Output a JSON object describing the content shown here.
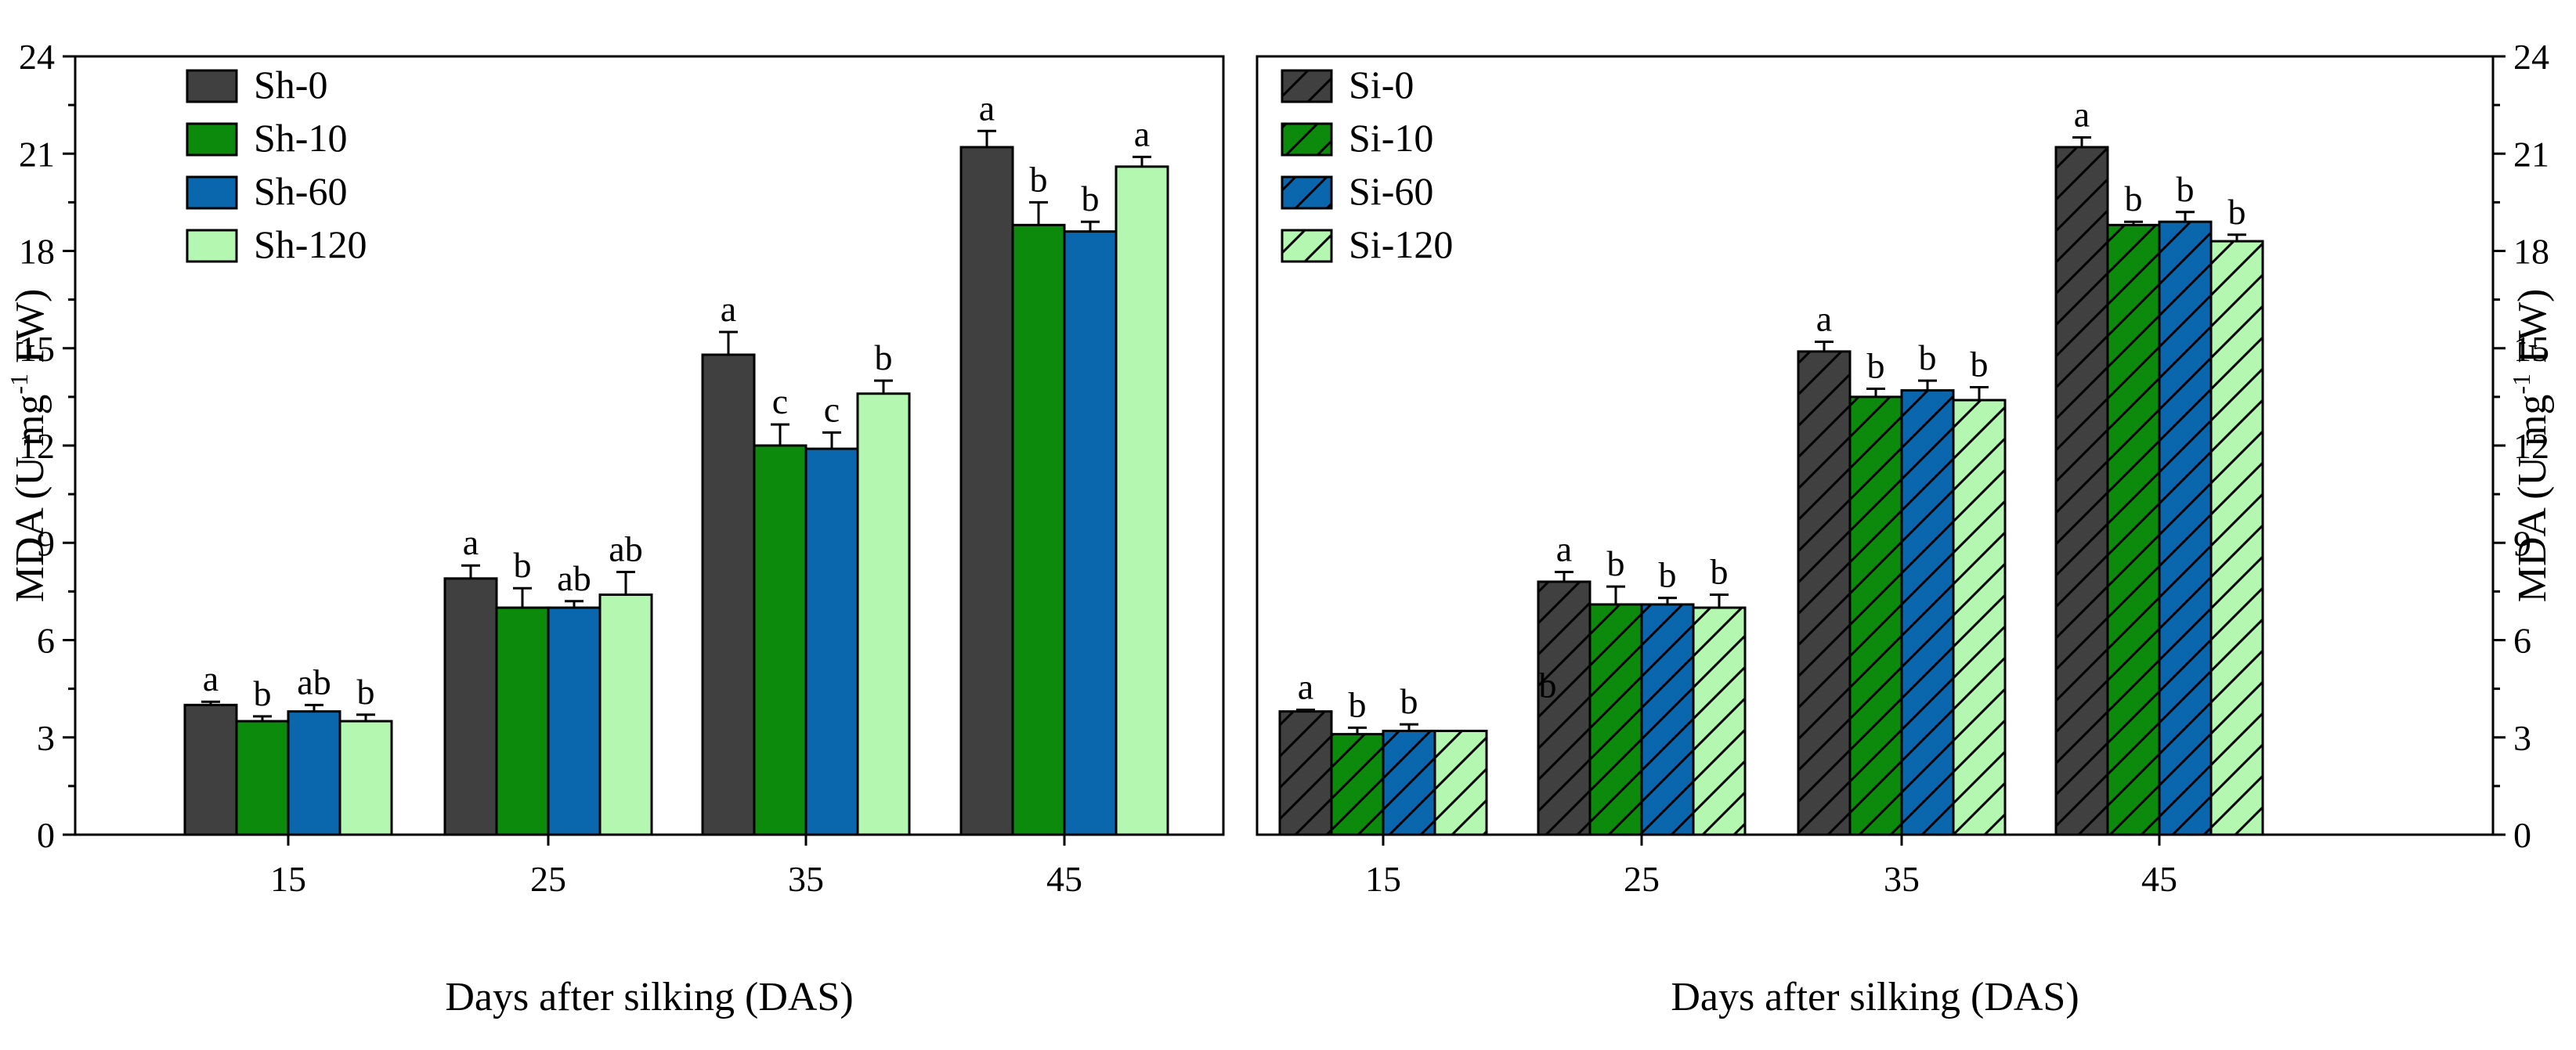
{
  "chart_data": [
    {
      "type": "bar",
      "panel": "left",
      "xlabel": "Days after silking (DAS)",
      "ylabel": "MDA (U mg",
      "ylabel_sup": "-1",
      "ylabel_tail": " FW)",
      "ylim": [
        0,
        24
      ],
      "yticks": [
        0,
        3,
        6,
        9,
        12,
        15,
        18,
        21,
        24
      ],
      "categories": [
        "15",
        "25",
        "35",
        "45"
      ],
      "legend": "top-left",
      "series": [
        {
          "name": "Sh-0",
          "color": "#404040",
          "hatch": false,
          "values": [
            4.0,
            7.9,
            14.8,
            21.2
          ],
          "errors": [
            0.1,
            0.4,
            0.7,
            0.5
          ],
          "sig": [
            "a",
            "a",
            "a",
            "a"
          ]
        },
        {
          "name": "Sh-10",
          "color": "#0b8a0b",
          "hatch": false,
          "values": [
            3.5,
            7.0,
            12.0,
            18.8
          ],
          "errors": [
            0.15,
            0.6,
            0.65,
            0.7
          ],
          "sig": [
            "b",
            "b",
            "c",
            "b"
          ]
        },
        {
          "name": "Sh-60",
          "color": "#0a67ad",
          "hatch": false,
          "values": [
            3.8,
            7.0,
            11.9,
            18.6
          ],
          "errors": [
            0.2,
            0.2,
            0.5,
            0.3
          ],
          "sig": [
            "ab",
            "ab",
            "c",
            "b"
          ]
        },
        {
          "name": "Sh-120",
          "color": "#b3f7b0",
          "hatch": false,
          "values": [
            3.5,
            7.4,
            13.6,
            20.6
          ],
          "errors": [
            0.2,
            0.7,
            0.4,
            0.3
          ],
          "sig": [
            "b",
            "ab",
            "b",
            "a"
          ]
        }
      ]
    },
    {
      "type": "bar",
      "panel": "right",
      "xlabel": "Days after silking (DAS)",
      "ylabel": "MDA (U mg",
      "ylabel_sup": "-1",
      "ylabel_tail": " FW)",
      "ylim": [
        0,
        24
      ],
      "yticks": [
        0,
        3,
        6,
        9,
        12,
        15,
        18,
        21,
        24
      ],
      "categories": [
        "15",
        "25",
        "35",
        "45"
      ],
      "legend": "top-left",
      "series": [
        {
          "name": "Si-0",
          "color": "#404040",
          "hatch": true,
          "values": [
            3.8,
            7.8,
            14.9,
            21.2
          ],
          "errors": [
            0.05,
            0.3,
            0.3,
            0.3
          ],
          "sig": [
            "a",
            "a",
            "a",
            "a"
          ]
        },
        {
          "name": "Si-10",
          "color": "#0b8a0b",
          "hatch": true,
          "values": [
            3.1,
            7.1,
            13.5,
            18.8
          ],
          "errors": [
            0.2,
            0.55,
            0.25,
            0.1
          ],
          "sig": [
            "b",
            "b",
            "b",
            "b"
          ]
        },
        {
          "name": "Si-60",
          "color": "#0a67ad",
          "hatch": true,
          "values": [
            3.2,
            7.1,
            13.7,
            18.9
          ],
          "errors": [
            0.2,
            0.2,
            0.3,
            0.3
          ],
          "sig": [
            "b",
            "b",
            "b",
            "b"
          ]
        },
        {
          "name": "Si-120",
          "color": "#b3f7b0",
          "hatch": true,
          "values": [
            3.2,
            7.0,
            13.4,
            18.3
          ],
          "errors": [
            0.0,
            0.4,
            0.4,
            0.2
          ],
          "sig": [
            "",
            "b",
            "b",
            "b"
          ]
        }
      ],
      "stray_labels": [
        {
          "text": "b",
          "x_category": "25",
          "y_value": 4.0
        }
      ]
    }
  ]
}
